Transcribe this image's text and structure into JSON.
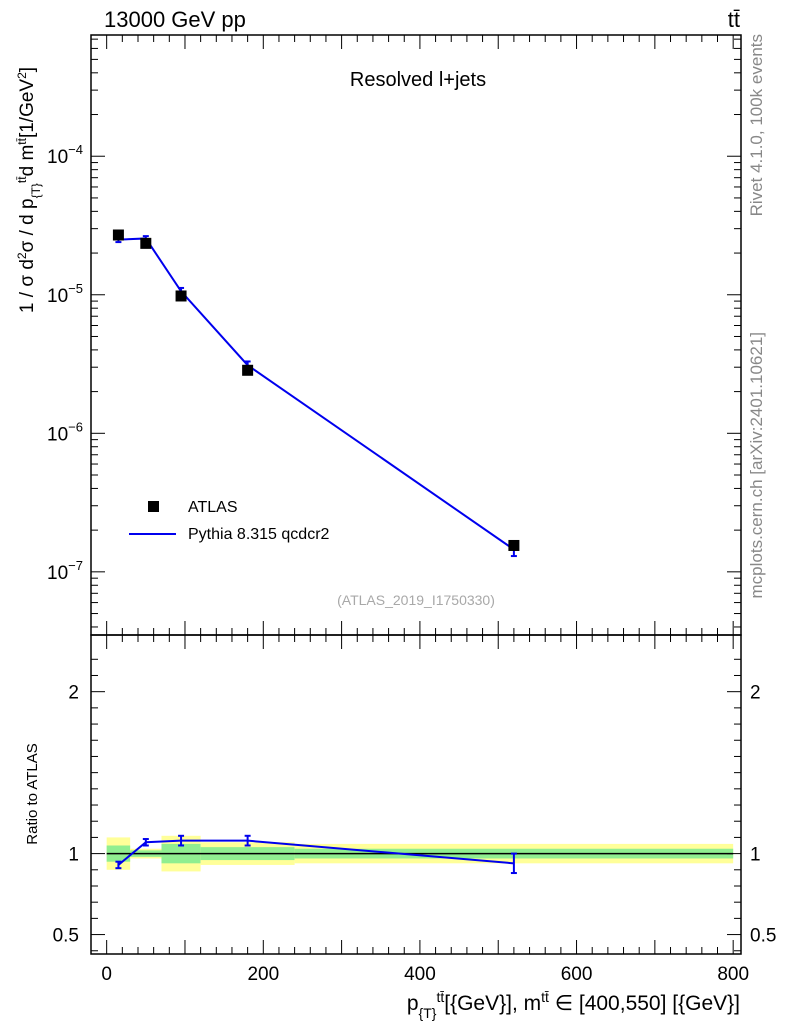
{
  "header": {
    "energy_label": "13000 GeV pp",
    "process_label": "tt̄"
  },
  "side_text": {
    "rivet": "Rivet 4.1.0,  100k events",
    "source": "mcplots.cern.ch [arXiv:2401.10621]"
  },
  "chart_data": [
    {
      "type": "scatter",
      "panel": "main",
      "yscale": "log",
      "title": "Resolved l+jets",
      "watermark": "(ATLAS_2019_I1750330)",
      "ylabel": "1 / σ d²σ / d p_{T}^{tt̄} d m^{tt̄} [1/GeV²]",
      "xlim": [
        -20,
        810
      ],
      "ylim": [
        3.5e-08,
        0.00075
      ],
      "yticks": [
        {
          "value": 1e-07,
          "exp": "−7"
        },
        {
          "value": 1e-06,
          "exp": "−6"
        },
        {
          "value": 1e-05,
          "exp": "−5"
        },
        {
          "value": 0.0001,
          "exp": "−4"
        }
      ],
      "legend_position": "lower-left",
      "series": [
        {
          "name": "ATLAS",
          "style": "markers",
          "color": "#000000",
          "x": [
            15,
            50,
            95,
            180,
            520
          ],
          "y": [
            2.7e-05,
            2.35e-05,
            9.8e-06,
            2.85e-06,
            1.55e-07
          ]
        },
        {
          "name": "Pythia 8.315 qcdcr2",
          "style": "line",
          "color": "#0000ee",
          "x": [
            15,
            50,
            95,
            180,
            520
          ],
          "y": [
            2.5e-05,
            2.55e-05,
            1.06e-05,
            3.1e-06,
            1.45e-07
          ],
          "yerr_lo": [
            2.4e-05,
            2.45e-05,
            1e-05,
            2.9e-06,
            1.3e-07
          ],
          "yerr_hi": [
            2.6e-05,
            2.65e-05,
            1.12e-05,
            3.3e-06,
            1.6e-07
          ]
        }
      ]
    },
    {
      "type": "line",
      "panel": "ratio",
      "ylabel": "Ratio to ATLAS",
      "xlabel": "p_{T}^{tt̄} [{GeV}], m^{tt̄} ∈ [400,550] [{GeV}]",
      "xlim": [
        -20,
        810
      ],
      "ylim": [
        0.38,
        2.35
      ],
      "yticks": [
        0.5,
        1,
        2
      ],
      "yticklabels": [
        "0.5",
        "1",
        "2"
      ],
      "xticks": [
        0,
        200,
        400,
        600,
        800
      ],
      "xticklabels": [
        "0",
        "200",
        "400",
        "600",
        "800"
      ],
      "bands": [
        {
          "x0": 0,
          "x1": 30,
          "y_lo": 0.95,
          "y_hi": 1.05,
          "outer_lo": 0.9,
          "outer_hi": 1.1
        },
        {
          "x0": 30,
          "x1": 70,
          "y_lo": 0.98,
          "y_hi": 1.02,
          "outer_lo": 0.97,
          "outer_hi": 1.03
        },
        {
          "x0": 70,
          "x1": 120,
          "y_lo": 0.94,
          "y_hi": 1.06,
          "outer_lo": 0.89,
          "outer_hi": 1.11
        },
        {
          "x0": 120,
          "x1": 240,
          "y_lo": 0.96,
          "y_hi": 1.04,
          "outer_lo": 0.93,
          "outer_hi": 1.07
        },
        {
          "x0": 240,
          "x1": 800,
          "y_lo": 0.97,
          "y_hi": 1.03,
          "outer_lo": 0.94,
          "outer_hi": 1.06
        }
      ],
      "series": [
        {
          "name": "Pythia 8.315 qcdcr2",
          "color": "#0000ee",
          "x": [
            15,
            50,
            95,
            180,
            520
          ],
          "y": [
            0.93,
            1.07,
            1.08,
            1.08,
            0.94
          ],
          "yerr_lo": [
            0.91,
            1.05,
            1.05,
            1.05,
            0.88
          ],
          "yerr_hi": [
            0.95,
            1.09,
            1.11,
            1.11,
            1.0
          ]
        }
      ]
    }
  ]
}
